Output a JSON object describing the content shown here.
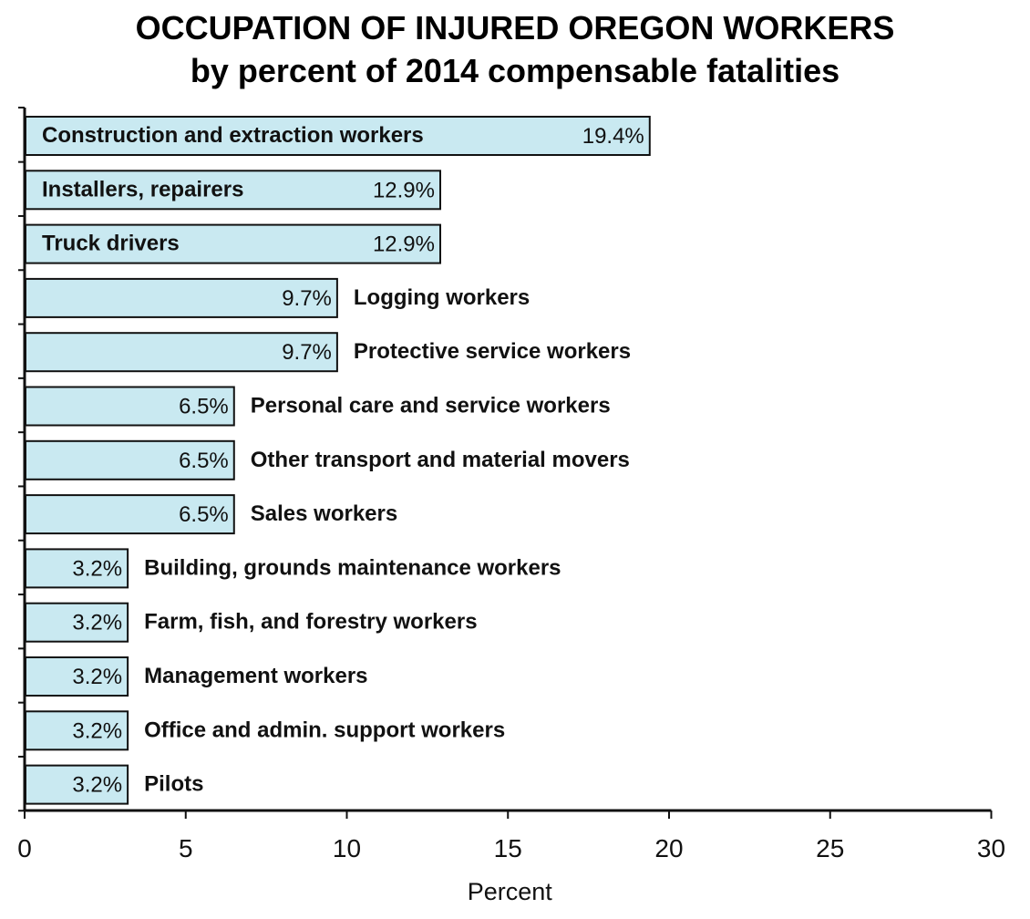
{
  "chart_data": {
    "type": "bar",
    "orientation": "horizontal",
    "title": "OCCUPATION OF INJURED OREGON WORKERS",
    "subtitle": "by percent of 2014 compensable fatalities",
    "xlabel": "Percent",
    "ylabel": "",
    "xlim": [
      0,
      30
    ],
    "xticks": [
      0,
      5,
      10,
      15,
      20,
      25,
      30
    ],
    "grid": false,
    "legend": "none",
    "bar_color": "#c9e9f1",
    "bar_outline_color": "#111111",
    "categories": [
      "Construction and extraction workers",
      "Installers, repairers",
      "Truck drivers",
      "Logging workers",
      "Protective service workers",
      "Personal care and service workers",
      "Other transport and material movers",
      "Sales workers",
      "Building, grounds maintenance workers",
      "Farm, fish, and forestry workers",
      "Management workers",
      "Office and admin. support workers",
      "Pilots"
    ],
    "values": [
      19.4,
      12.9,
      12.9,
      9.7,
      9.7,
      6.5,
      6.5,
      6.5,
      3.2,
      3.2,
      3.2,
      3.2,
      3.2
    ],
    "value_labels": [
      "19.4%",
      "12.9%",
      "12.9%",
      "9.7%",
      "9.7%",
      "6.5%",
      "6.5%",
      "6.5%",
      "3.2%",
      "3.2%",
      "3.2%",
      "3.2%",
      "3.2%"
    ],
    "category_label_inside": [
      true,
      true,
      true,
      false,
      false,
      false,
      false,
      false,
      false,
      false,
      false,
      false,
      false
    ]
  }
}
